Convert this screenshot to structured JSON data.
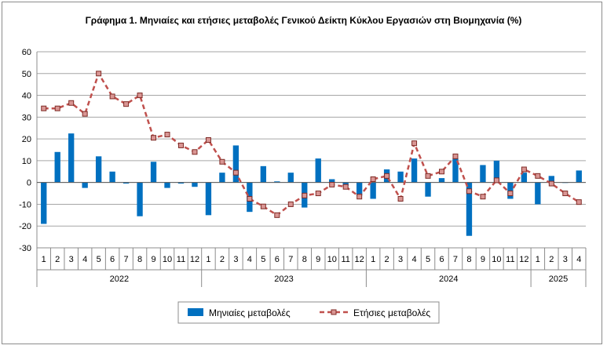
{
  "chart_data": {
    "type": "bar",
    "title": "Γράφημα 1. Μηνιαίες και ετήσιες μεταβολές  Γενικού Δείκτη Κύκλου Εργασιών στη Βιομηχανία (%)",
    "ylim": [
      -30,
      60
    ],
    "yticks": [
      -30,
      -20,
      -10,
      0,
      10,
      20,
      30,
      40,
      50,
      60
    ],
    "grid": true,
    "legend_position": "bottom",
    "categories": [
      "1",
      "2",
      "3",
      "4",
      "5",
      "6",
      "7",
      "8",
      "9",
      "10",
      "11",
      "12",
      "1",
      "2",
      "3",
      "4",
      "5",
      "6",
      "7",
      "8",
      "9",
      "10",
      "11",
      "12",
      "1",
      "2",
      "3",
      "4",
      "5",
      "6",
      "7",
      "8",
      "9",
      "10",
      "11",
      "12",
      "1",
      "2",
      "3",
      "4"
    ],
    "years": [
      {
        "label": "2022",
        "count": 12
      },
      {
        "label": "2023",
        "count": 12
      },
      {
        "label": "2024",
        "count": 12
      },
      {
        "label": "2025",
        "count": 4
      }
    ],
    "series": [
      {
        "name": "Μηνιαίες μεταβολές",
        "type": "bar",
        "color": "#0070c0",
        "values": [
          -19,
          14,
          22.5,
          -2.5,
          12,
          5,
          -0.5,
          -15.5,
          9.5,
          -2.5,
          -0.5,
          -2,
          -15,
          4.5,
          17,
          -13.5,
          7.5,
          0.5,
          4.5,
          -11.5,
          11,
          1.5,
          -1.5,
          -6,
          -7.5,
          6,
          5,
          11,
          -6.5,
          2,
          11,
          -24.5,
          8,
          10,
          -7.5,
          4.5,
          -10,
          3,
          0,
          5.5
        ]
      },
      {
        "name": "Ετήσιες μεταβολές",
        "type": "line",
        "color": "#c0504d",
        "values": [
          34,
          34,
          36.5,
          31.5,
          50,
          39.5,
          36,
          40,
          20.5,
          22,
          17,
          14,
          19.5,
          9.5,
          4.5,
          -7.5,
          -11,
          -15,
          -10,
          -6,
          -5,
          -1,
          -2,
          -6.5,
          1.5,
          3,
          -7.5,
          18,
          3,
          5,
          12,
          -4,
          -6.5,
          1,
          -5,
          6,
          3,
          -0.5,
          -5,
          -9
        ]
      }
    ]
  }
}
